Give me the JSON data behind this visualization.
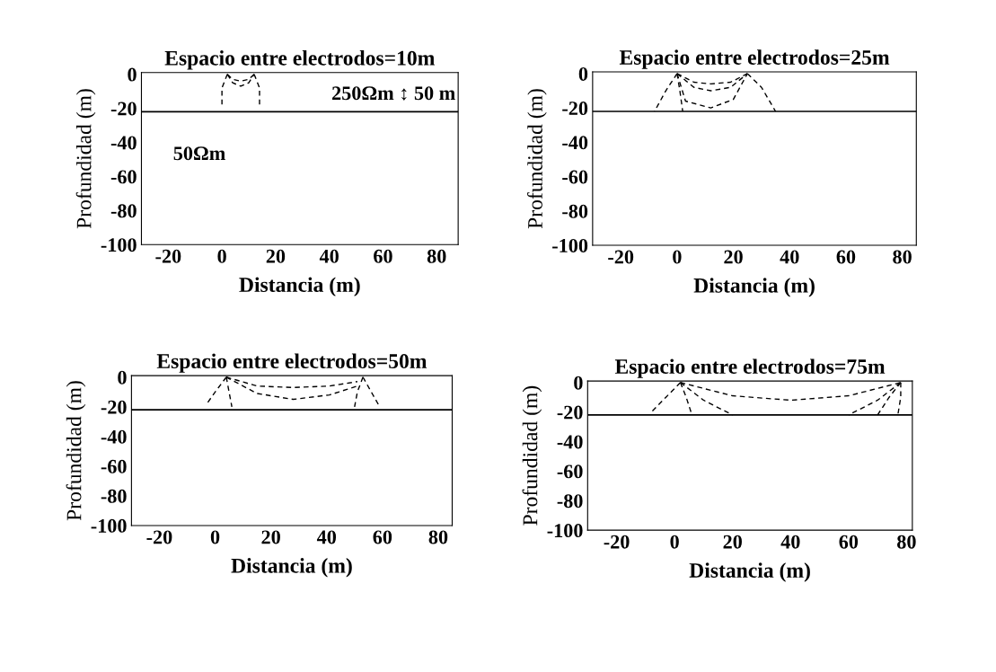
{
  "chart_data": [
    {
      "type": "line",
      "title": "Espacio entre electrodos=10m",
      "xlabel": "Distancia (m)",
      "ylabel": "Profundidad (m)",
      "xlim": [
        -30,
        88
      ],
      "ylim": [
        -100,
        1
      ],
      "xticks": [
        -20,
        0,
        20,
        40,
        60,
        80
      ],
      "yticks": [
        0,
        -20,
        -40,
        -60,
        -80,
        -100
      ],
      "line_style": "dashed",
      "ref_lines": [
        {
          "axis": "y",
          "value": -22,
          "color": "#000000"
        }
      ],
      "annotations": [
        "250Ωm ↕ 50 m",
        "50Ωm"
      ],
      "series": [
        {
          "color": "#000000",
          "x": [
            2,
            4,
            7,
            10,
            12
          ],
          "values": [
            0,
            -3,
            -4,
            -3,
            0
          ]
        },
        {
          "color": "#000000",
          "x": [
            2,
            4,
            7,
            10,
            12
          ],
          "values": [
            0,
            -5,
            -7,
            -5,
            0
          ]
        },
        {
          "color": "#000000",
          "x": [
            2,
            0,
            0
          ],
          "values": [
            0,
            -8,
            -20
          ]
        },
        {
          "color": "#000000",
          "x": [
            12,
            14,
            14
          ],
          "values": [
            0,
            -8,
            -20
          ]
        }
      ]
    },
    {
      "type": "line",
      "title": "Espacio entre electrodos=25m",
      "xlabel": "Distancia (m)",
      "ylabel": "Profundidad (m)",
      "xlim": [
        -30,
        85
      ],
      "ylim": [
        -100,
        1
      ],
      "xticks": [
        -20,
        0,
        20,
        40,
        60,
        80
      ],
      "yticks": [
        0,
        -20,
        -40,
        -60,
        -80,
        -100
      ],
      "line_style": "dashed",
      "ref_lines": [
        {
          "axis": "y",
          "value": -22,
          "color": "#000000"
        }
      ],
      "series": [
        {
          "color": "#000000",
          "x": [
            0,
            6,
            12,
            19,
            25
          ],
          "values": [
            0,
            -5,
            -6,
            -5,
            0
          ]
        },
        {
          "color": "#000000",
          "x": [
            0,
            6,
            12,
            19,
            25
          ],
          "values": [
            0,
            -8,
            -10,
            -8,
            0
          ]
        },
        {
          "color": "#000000",
          "x": [
            0,
            3,
            12,
            20,
            25
          ],
          "values": [
            0,
            -16,
            -20,
            -15,
            0
          ]
        },
        {
          "color": "#000000",
          "x": [
            0,
            -4,
            -8
          ],
          "values": [
            0,
            -10,
            -22
          ]
        },
        {
          "color": "#000000",
          "x": [
            25,
            30,
            35
          ],
          "values": [
            0,
            -8,
            -22
          ]
        },
        {
          "color": "#000000",
          "x": [
            0,
            1,
            2
          ],
          "values": [
            0,
            -10,
            -22
          ]
        }
      ]
    },
    {
      "type": "line",
      "title": "Espacio entre electrodos=50m",
      "xlabel": "Distancia (m)",
      "ylabel": "Profundidad (m)",
      "xlim": [
        -30,
        85
      ],
      "ylim": [
        -100,
        1
      ],
      "xticks": [
        -20,
        0,
        20,
        40,
        60,
        80
      ],
      "yticks": [
        0,
        -20,
        -40,
        -60,
        -80,
        -100
      ],
      "line_style": "dashed",
      "ref_lines": [
        {
          "axis": "y",
          "value": -22,
          "color": "#000000"
        }
      ],
      "series": [
        {
          "color": "#000000",
          "x": [
            4,
            15,
            28,
            41,
            51
          ],
          "values": [
            0,
            -6,
            -7,
            -6,
            -3
          ]
        },
        {
          "color": "#000000",
          "x": [
            4,
            15,
            28,
            41,
            51
          ],
          "values": [
            0,
            -11,
            -15,
            -12,
            -6
          ]
        },
        {
          "color": "#000000",
          "x": [
            4,
            0,
            -3
          ],
          "values": [
            0,
            -10,
            -18
          ]
        },
        {
          "color": "#000000",
          "x": [
            4,
            5,
            6
          ],
          "values": [
            0,
            -10,
            -20
          ]
        },
        {
          "color": "#000000",
          "x": [
            53,
            51,
            50
          ],
          "values": [
            0,
            -10,
            -20
          ]
        },
        {
          "color": "#000000",
          "x": [
            53,
            56,
            59
          ],
          "values": [
            0,
            -10,
            -20
          ]
        }
      ]
    },
    {
      "type": "line",
      "title": "Espacio entre electrodos=75m",
      "xlabel": "Distancia (m)",
      "ylabel": "Profundidad (m)",
      "xlim": [
        -30,
        82
      ],
      "ylim": [
        -100,
        1
      ],
      "xticks": [
        -20,
        0,
        20,
        40,
        60,
        80
      ],
      "yticks": [
        0,
        -20,
        -40,
        -60,
        -80,
        -100
      ],
      "line_style": "dashed",
      "ref_lines": [
        {
          "axis": "y",
          "value": -22,
          "color": "#000000"
        }
      ],
      "series": [
        {
          "color": "#000000",
          "x": [
            2,
            20,
            40,
            60,
            78
          ],
          "values": [
            0,
            -9,
            -12,
            -9,
            0
          ]
        },
        {
          "color": "#000000",
          "x": [
            2,
            -3,
            -8
          ],
          "values": [
            0,
            -10,
            -20
          ]
        },
        {
          "color": "#000000",
          "x": [
            2,
            4,
            6
          ],
          "values": [
            0,
            -10,
            -22
          ]
        },
        {
          "color": "#000000",
          "x": [
            2,
            10,
            20
          ],
          "values": [
            0,
            -12,
            -22
          ]
        },
        {
          "color": "#000000",
          "x": [
            78,
            70,
            60
          ],
          "values": [
            0,
            -12,
            -22
          ]
        },
        {
          "color": "#000000",
          "x": [
            78,
            74,
            70
          ],
          "values": [
            0,
            -10,
            -22
          ]
        },
        {
          "color": "#000000",
          "x": [
            78,
            78,
            77
          ],
          "values": [
            0,
            -10,
            -22
          ]
        }
      ]
    }
  ]
}
